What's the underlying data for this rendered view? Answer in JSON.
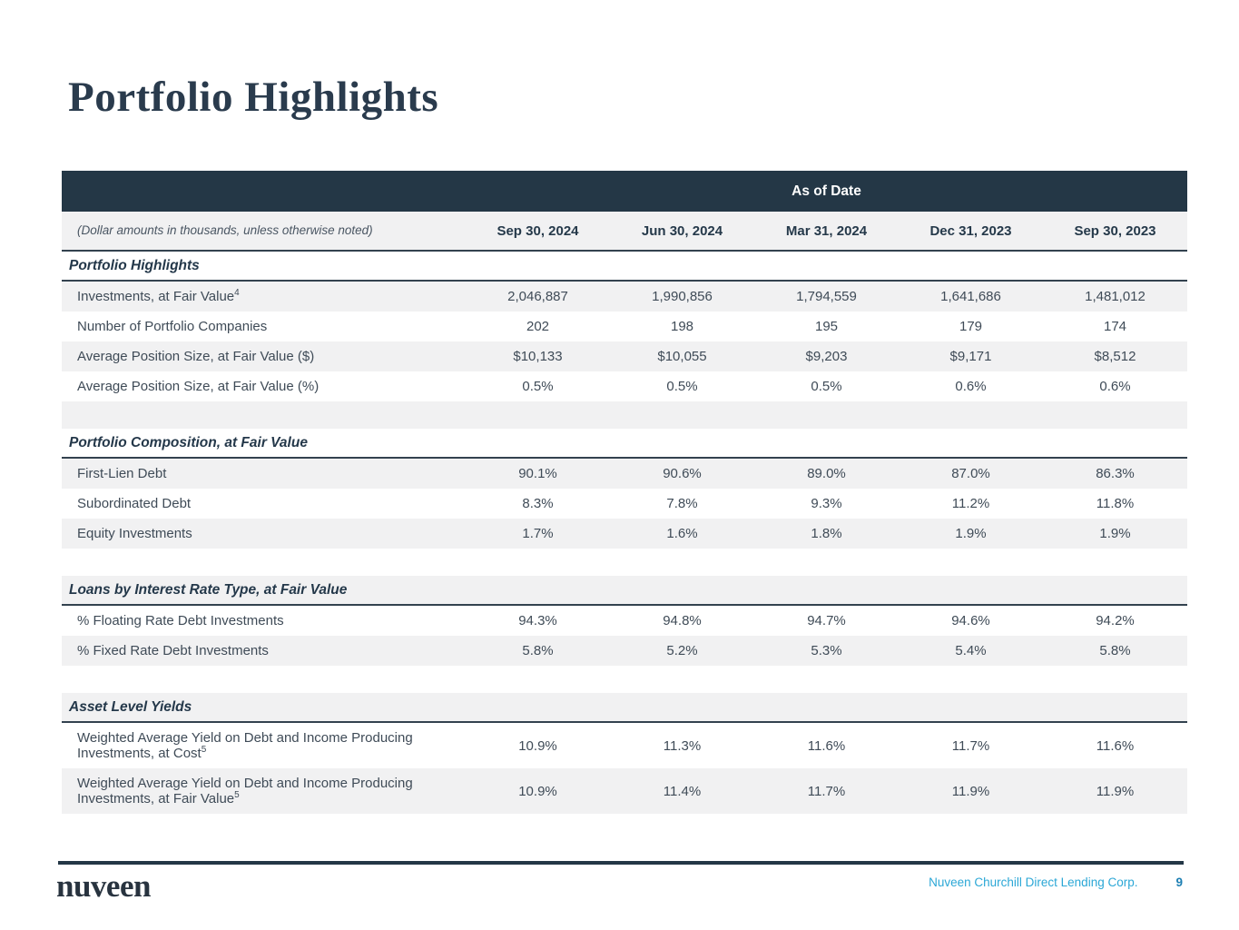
{
  "page": {
    "title": "Portfolio Highlights",
    "footer": {
      "logo": "nuveen",
      "company": "Nuveen Churchill Direct Lending Corp.",
      "page_number": "9"
    },
    "colors": {
      "header_navy": "#243746",
      "row_gray": "#f1f1f2",
      "text_navy": "#24384a",
      "footer_cyan": "#2ba7d6",
      "page_number_blue": "#1d7fb3"
    }
  },
  "table": {
    "banner": "As of Date",
    "note": "(Dollar amounts in thousands, unless otherwise noted)",
    "columns": [
      "Sep 30, 2024",
      "Jun 30, 2024",
      "Mar 31, 2024",
      "Dec 31, 2023",
      "Sep 30, 2023"
    ],
    "sections": [
      {
        "header": "Portfolio Highlights",
        "rows": [
          {
            "label": "Investments, at Fair Value",
            "sup": "4",
            "values": [
              "2,046,887",
              "1,990,856",
              "1,794,559",
              "1,641,686",
              "1,481,012"
            ]
          },
          {
            "label": "Number of Portfolio Companies",
            "values": [
              "202",
              "198",
              "195",
              "179",
              "174"
            ]
          },
          {
            "label": "Average Position Size, at Fair Value ($)",
            "values": [
              "$10,133",
              "$10,055",
              "$9,203",
              "$9,171",
              "$8,512"
            ]
          },
          {
            "label": "Average Position Size, at Fair Value (%)",
            "values": [
              "0.5%",
              "0.5%",
              "0.5%",
              "0.6%",
              "0.6%"
            ]
          }
        ]
      },
      {
        "header": "Portfolio Composition, at Fair Value",
        "rows": [
          {
            "label": "First-Lien Debt",
            "values": [
              "90.1%",
              "90.6%",
              "89.0%",
              "87.0%",
              "86.3%"
            ]
          },
          {
            "label": "Subordinated Debt",
            "values": [
              "8.3%",
              "7.8%",
              "9.3%",
              "11.2%",
              "11.8%"
            ]
          },
          {
            "label": "Equity Investments",
            "values": [
              "1.7%",
              "1.6%",
              "1.8%",
              "1.9%",
              "1.9%"
            ]
          }
        ]
      },
      {
        "header": "Loans by Interest Rate Type, at Fair Value",
        "rows": [
          {
            "label": "% Floating Rate Debt Investments",
            "values": [
              "94.3%",
              "94.8%",
              "94.7%",
              "94.6%",
              "94.2%"
            ]
          },
          {
            "label": "% Fixed Rate Debt Investments",
            "values": [
              "5.8%",
              "5.2%",
              "5.3%",
              "5.4%",
              "5.8%"
            ]
          }
        ]
      },
      {
        "header": "Asset Level Yields",
        "rows": [
          {
            "label": "Weighted Average Yield on Debt and Income Producing Investments, at Cost",
            "sup": "5",
            "values": [
              "10.9%",
              "11.3%",
              "11.6%",
              "11.7%",
              "11.6%"
            ]
          },
          {
            "label": "Weighted Average Yield on Debt and Income Producing Investments, at Fair Value",
            "sup": "5",
            "values": [
              "10.9%",
              "11.4%",
              "11.7%",
              "11.9%",
              "11.9%"
            ]
          }
        ]
      }
    ]
  }
}
